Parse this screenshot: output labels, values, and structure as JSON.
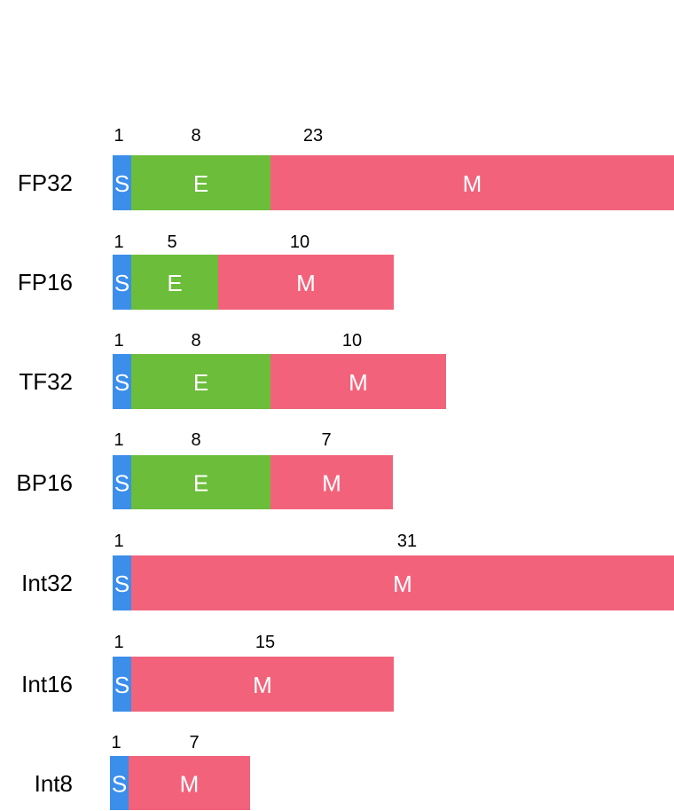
{
  "colors": {
    "sign": "#3b8eea",
    "exponent": "#6cbd3a",
    "mantissa": "#f2637b",
    "segment_text": "#ffffff"
  },
  "formats": [
    {
      "name": "FP32",
      "segments": [
        {
          "type": "sign",
          "letter": "S",
          "bits": "1"
        },
        {
          "type": "exponent",
          "letter": "E",
          "bits": "8"
        },
        {
          "type": "mantissa",
          "letter": "M",
          "bits": "23"
        }
      ]
    },
    {
      "name": "FP16",
      "segments": [
        {
          "type": "sign",
          "letter": "S",
          "bits": "1"
        },
        {
          "type": "exponent",
          "letter": "E",
          "bits": "5"
        },
        {
          "type": "mantissa",
          "letter": "M",
          "bits": "10"
        }
      ]
    },
    {
      "name": "TF32",
      "segments": [
        {
          "type": "sign",
          "letter": "S",
          "bits": "1"
        },
        {
          "type": "exponent",
          "letter": "E",
          "bits": "8"
        },
        {
          "type": "mantissa",
          "letter": "M",
          "bits": "10"
        }
      ]
    },
    {
      "name": "BP16",
      "segments": [
        {
          "type": "sign",
          "letter": "S",
          "bits": "1"
        },
        {
          "type": "exponent",
          "letter": "E",
          "bits": "8"
        },
        {
          "type": "mantissa",
          "letter": "M",
          "bits": "7"
        }
      ]
    },
    {
      "name": "Int32",
      "segments": [
        {
          "type": "sign",
          "letter": "S",
          "bits": "1"
        },
        {
          "type": "mantissa",
          "letter": "M",
          "bits": "31"
        }
      ]
    },
    {
      "name": "Int16",
      "segments": [
        {
          "type": "sign",
          "letter": "S",
          "bits": "1"
        },
        {
          "type": "mantissa",
          "letter": "M",
          "bits": "15"
        }
      ]
    },
    {
      "name": "Int8",
      "segments": [
        {
          "type": "sign",
          "letter": "S",
          "bits": "1"
        },
        {
          "type": "mantissa",
          "letter": "M",
          "bits": "7"
        }
      ]
    }
  ]
}
